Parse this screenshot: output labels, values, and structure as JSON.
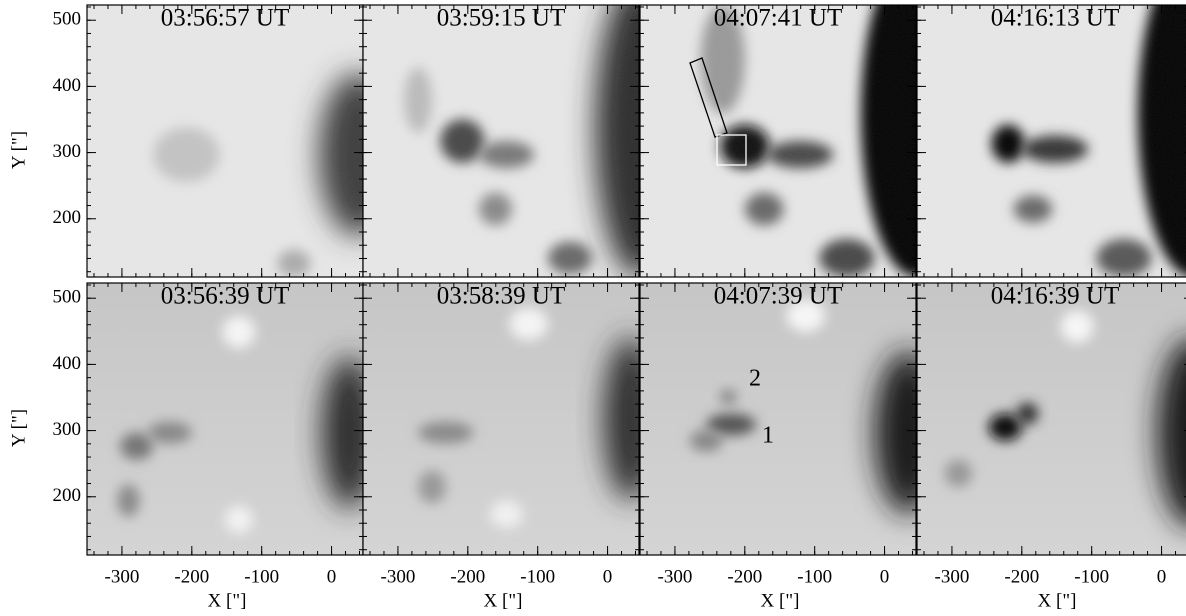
{
  "figure": {
    "panels": [
      {
        "time": "03:56:57 UT"
      },
      {
        "time": "03:59:15 UT"
      },
      {
        "time": "04:07:41 UT"
      },
      {
        "time": "04:16:13 UT"
      },
      {
        "time": "03:56:39 UT"
      },
      {
        "time": "03:58:39 UT"
      },
      {
        "time": "04:07:39 UT"
      },
      {
        "time": "04:16:39 UT"
      }
    ],
    "xlim": [
      -350,
      45
    ],
    "ylim": [
      112,
      523
    ],
    "xticks": [
      -300,
      -200,
      -100,
      0
    ],
    "yticks": [
      200,
      300,
      400,
      500
    ],
    "xlabel": "X [\"]",
    "ylabel": "Y [\"]",
    "annotations": [
      "2",
      "1"
    ]
  }
}
